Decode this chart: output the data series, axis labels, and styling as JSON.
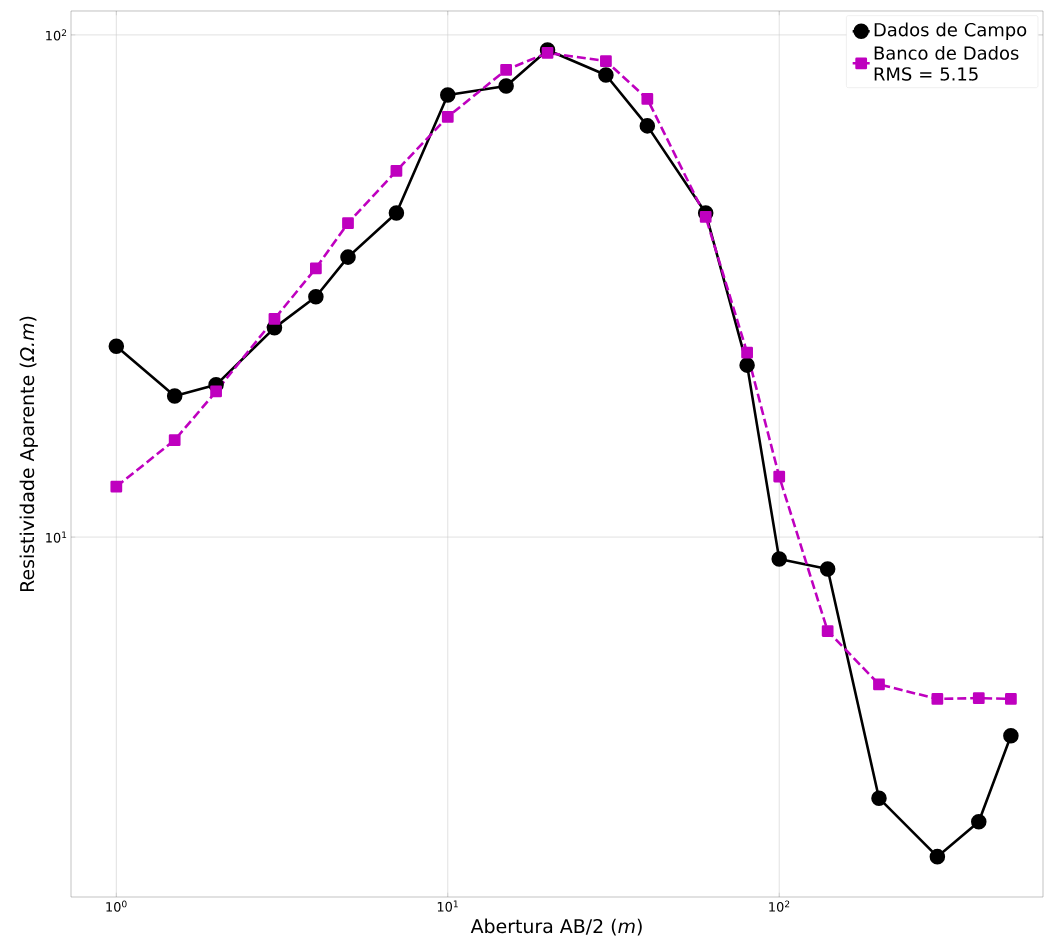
{
  "chart_data": {
    "type": "line",
    "xlabel": "Abertura AB/2 (*m*)",
    "ylabel": "Resistividade Aparente (*Ω.m*)",
    "log": "xy",
    "grid": true,
    "legend": "top right",
    "x": [
      1,
      1.5,
      2,
      3,
      4,
      5,
      7,
      10,
      15,
      20,
      30,
      40,
      60,
      80,
      100,
      140,
      200,
      300,
      400,
      500
    ],
    "xlim": [
      0.73,
      625
    ],
    "ylim": [
      1.92,
      111.6
    ],
    "xticks": [
      {
        "value": 1,
        "label": "10$^{0}$"
      },
      {
        "value": 10,
        "label": "10$^{1}$"
      },
      {
        "value": 100,
        "label": "10$^{2}$"
      }
    ],
    "yticks": [
      {
        "value": 10,
        "label": "10$^{1}$"
      },
      {
        "value": 100,
        "label": "10$^{2}$"
      }
    ],
    "series": [
      {
        "name": "Dados de Campo",
        "color": "#000000",
        "marker": "circle",
        "line_style": "solid",
        "values": [
          24.0,
          19.1,
          20.1,
          26.1,
          30.1,
          36.1,
          44.2,
          75.9,
          79.1,
          93.3,
          83.2,
          65.9,
          44.2,
          22.0,
          9.04,
          8.64,
          3.02,
          2.31,
          2.71,
          4.02
        ]
      },
      {
        "name": "Banco de Dados RMS = 5.15",
        "color": "#bf00bf",
        "marker": "square",
        "line_style": "dashed",
        "values": [
          12.6,
          15.6,
          19.5,
          27.2,
          34.3,
          42.2,
          53.6,
          68.7,
          85.2,
          92.1,
          88.7,
          74.6,
          43.4,
          23.3,
          13.2,
          6.5,
          5.09,
          4.76,
          4.78,
          4.76
        ]
      }
    ]
  }
}
